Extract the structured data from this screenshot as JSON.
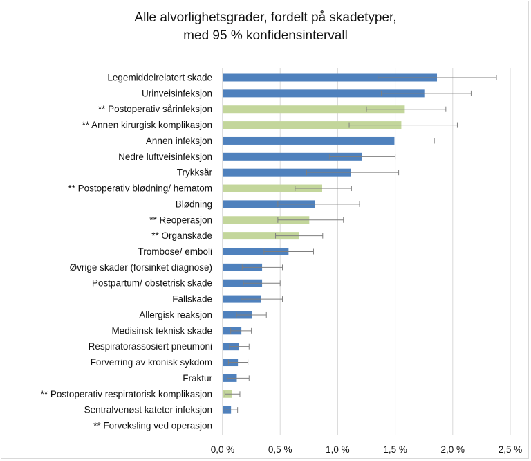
{
  "chart_data": {
    "type": "bar",
    "orientation": "horizontal",
    "title_line1": "Alle alvorlighetsgrader, fordelt på skadetyper,",
    "title_line2": "med 95 % konfidensintervall",
    "xlabel": "",
    "ylabel": "",
    "xlim": [
      0,
      2.5
    ],
    "x_ticks": [
      "0,0 %",
      "0,5 %",
      "1,0 %",
      "1,5 %",
      "2,0 %",
      "2,5 %"
    ],
    "grid": "vertical",
    "colors": {
      "blue": "#4f81bd",
      "green": "#c3d69b",
      "error_bar": "#7f7f7f",
      "grid": "#d9d9d9"
    },
    "categories": [
      {
        "label": "Legemiddelrelatert skade",
        "value": 1.86,
        "ci_low": 1.35,
        "ci_high": 2.38,
        "color": "blue"
      },
      {
        "label": "Urinveisinfeksjon",
        "value": 1.75,
        "ci_low": 1.38,
        "ci_high": 2.16,
        "color": "blue"
      },
      {
        "label": "** Postoperativ sårinfeksjon",
        "value": 1.58,
        "ci_low": 1.25,
        "ci_high": 1.94,
        "color": "green"
      },
      {
        "label": "** Annen kirurgisk komplikasjon",
        "value": 1.55,
        "ci_low": 1.1,
        "ci_high": 2.04,
        "color": "green"
      },
      {
        "label": "Annen infeksjon",
        "value": 1.49,
        "ci_low": 1.15,
        "ci_high": 1.84,
        "color": "blue"
      },
      {
        "label": "Nedre luftveisinfeksjon",
        "value": 1.21,
        "ci_low": 0.93,
        "ci_high": 1.5,
        "color": "blue"
      },
      {
        "label": "Trykksår",
        "value": 1.11,
        "ci_low": 0.73,
        "ci_high": 1.53,
        "color": "blue"
      },
      {
        "label": "** Postoperativ blødning/ hematom",
        "value": 0.86,
        "ci_low": 0.63,
        "ci_high": 1.12,
        "color": "green"
      },
      {
        "label": "Blødning",
        "value": 0.8,
        "ci_low": 0.48,
        "ci_high": 1.19,
        "color": "blue"
      },
      {
        "label": "** Reoperasjon",
        "value": 0.75,
        "ci_low": 0.48,
        "ci_high": 1.05,
        "color": "green"
      },
      {
        "label": "** Organskade",
        "value": 0.66,
        "ci_low": 0.46,
        "ci_high": 0.87,
        "color": "green"
      },
      {
        "label": "Trombose/ emboli",
        "value": 0.57,
        "ci_low": 0.36,
        "ci_high": 0.79,
        "color": "blue"
      },
      {
        "label": "Øvrige skader (forsinket diagnose)",
        "value": 0.34,
        "ci_low": 0.17,
        "ci_high": 0.52,
        "color": "blue"
      },
      {
        "label": "Postpartum/ obstetrisk skade",
        "value": 0.34,
        "ci_low": 0.18,
        "ci_high": 0.5,
        "color": "blue"
      },
      {
        "label": "Fallskade",
        "value": 0.33,
        "ci_low": 0.16,
        "ci_high": 0.52,
        "color": "blue"
      },
      {
        "label": "Allergisk reaksjon",
        "value": 0.25,
        "ci_low": 0.12,
        "ci_high": 0.38,
        "color": "blue"
      },
      {
        "label": "Medisinsk teknisk skade",
        "value": 0.16,
        "ci_low": 0.07,
        "ci_high": 0.25,
        "color": "blue"
      },
      {
        "label": "Respiratorassosiert pneumoni",
        "value": 0.14,
        "ci_low": 0.06,
        "ci_high": 0.23,
        "color": "blue"
      },
      {
        "label": "Forverring av kronisk sykdom",
        "value": 0.13,
        "ci_low": 0.05,
        "ci_high": 0.22,
        "color": "blue"
      },
      {
        "label": "Fraktur",
        "value": 0.12,
        "ci_low": 0.04,
        "ci_high": 0.23,
        "color": "blue"
      },
      {
        "label": "** Postoperativ respiratorisk komplikasjon",
        "value": 0.08,
        "ci_low": 0.02,
        "ci_high": 0.15,
        "color": "green"
      },
      {
        "label": "Sentralvenøst kateter infeksjon",
        "value": 0.07,
        "ci_low": 0.02,
        "ci_high": 0.13,
        "color": "blue"
      },
      {
        "label": "** Forveksling ved operasjon",
        "value": 0.0,
        "ci_low": 0.0,
        "ci_high": 0.0,
        "color": "green"
      }
    ]
  }
}
